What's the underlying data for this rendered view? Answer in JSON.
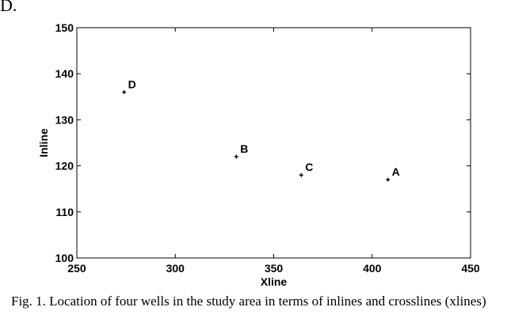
{
  "panel_label": "D.",
  "caption": "Fig. 1. Location of four wells in the study area in terms of inlines and crosslines (xlines)",
  "chart_data": {
    "type": "scatter",
    "xlabel": "Xline",
    "ylabel": "Inline",
    "xlim": [
      250,
      450
    ],
    "ylim": [
      100,
      150
    ],
    "xticks": [
      250,
      300,
      350,
      400,
      450
    ],
    "yticks": [
      100,
      110,
      120,
      130,
      140,
      150
    ],
    "grid": false,
    "points": [
      {
        "label": "D",
        "x": 274,
        "y": 136
      },
      {
        "label": "B",
        "x": 331,
        "y": 122
      },
      {
        "label": "C",
        "x": 364,
        "y": 118
      },
      {
        "label": "A",
        "x": 408,
        "y": 117
      }
    ]
  }
}
